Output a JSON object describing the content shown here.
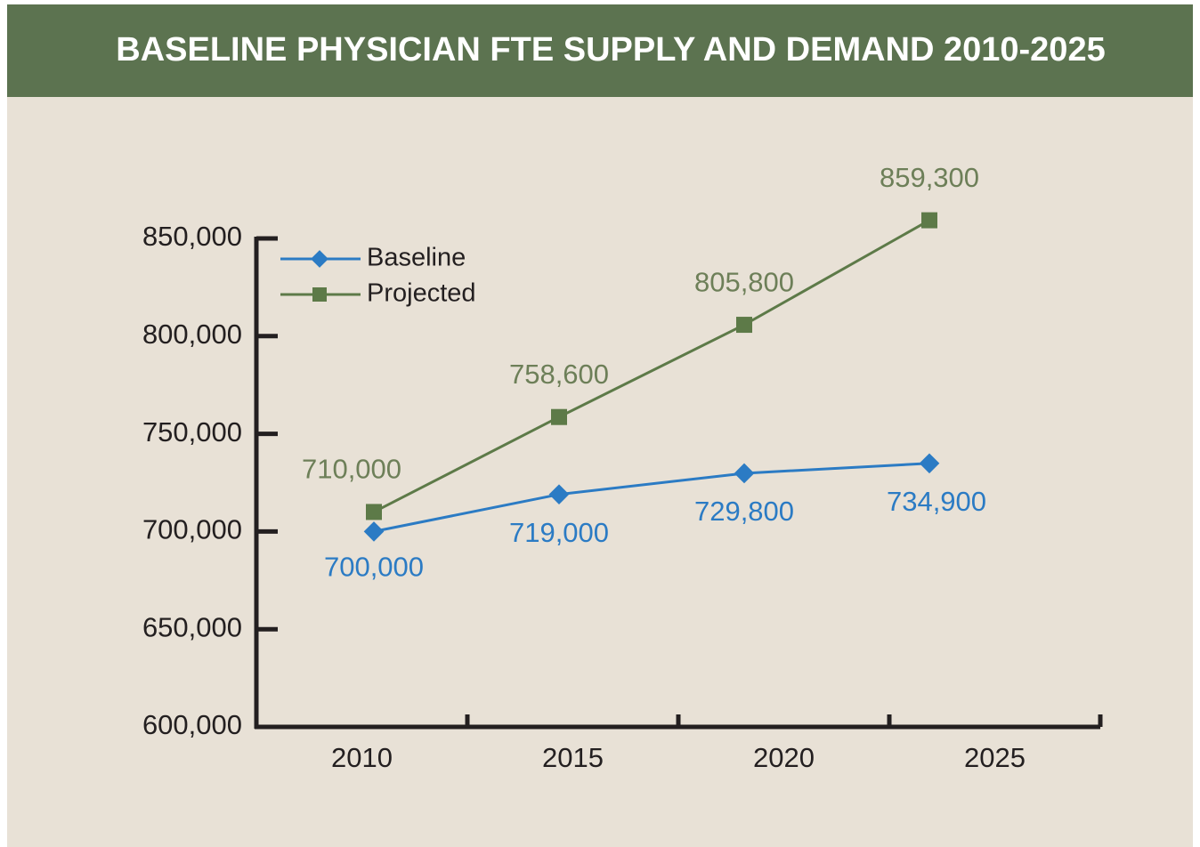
{
  "chart_data": {
    "type": "line",
    "title": "BASELINE PHYSICIAN FTE SUPPLY AND DEMAND 2010-2025",
    "categories": [
      "2010",
      "2015",
      "2020",
      "2025"
    ],
    "series": [
      {
        "name": "Baseline",
        "color": "#2b7bc4",
        "values": [
          700000,
          719000,
          729800,
          734900
        ],
        "value_labels": [
          "700,000",
          "719,000",
          "729,800",
          "734,900"
        ]
      },
      {
        "name": "Projected",
        "color": "#5d7a48",
        "values": [
          710000,
          758600,
          805800,
          859300
        ],
        "value_labels": [
          "710,000",
          "758,600",
          "805,800",
          "859,300"
        ]
      }
    ],
    "ylim": [
      600000,
      850000
    ],
    "yticks": [
      {
        "value": 600000,
        "label": "600,000"
      },
      {
        "value": 650000,
        "label": "650,000"
      },
      {
        "value": 700000,
        "label": "700,000"
      },
      {
        "value": 750000,
        "label": "750,000"
      },
      {
        "value": 800000,
        "label": "800,000"
      },
      {
        "value": 850000,
        "label": "850,000"
      }
    ],
    "legend": "upper left",
    "grid": false
  }
}
